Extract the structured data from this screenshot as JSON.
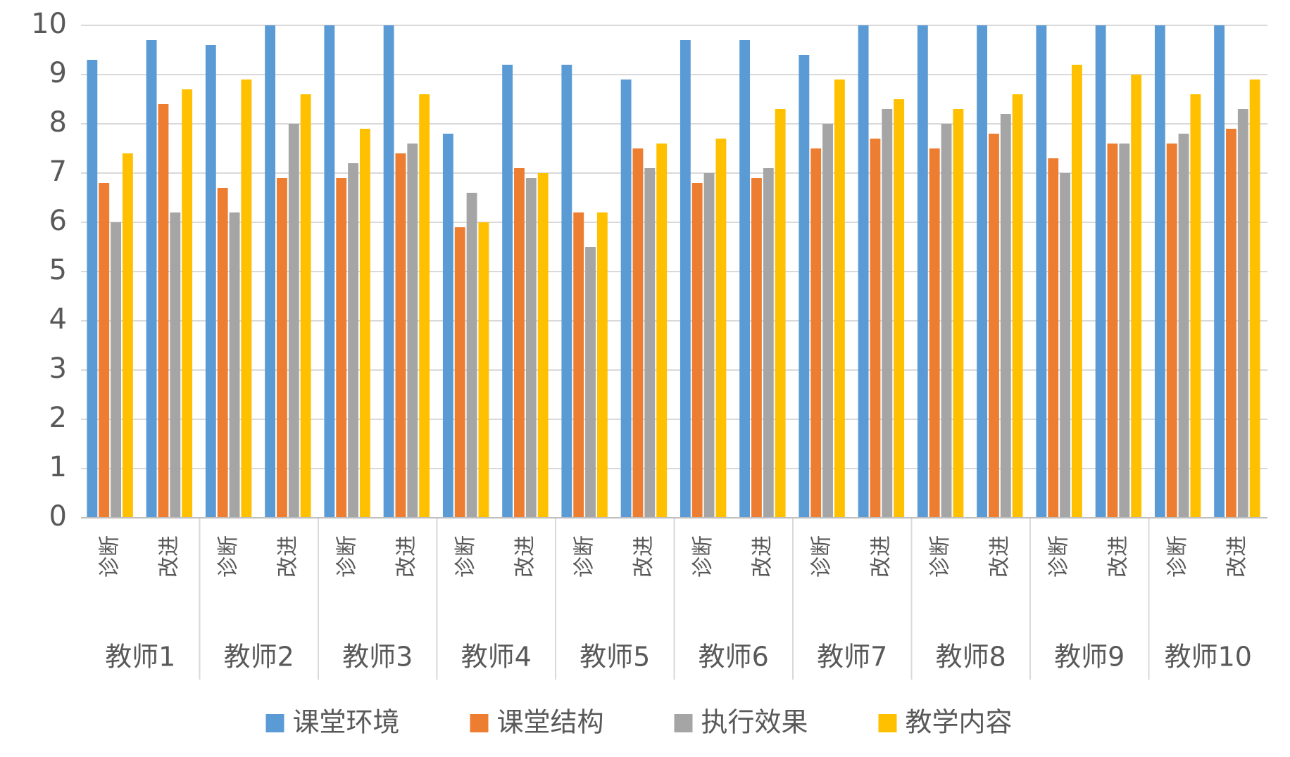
{
  "chart_data": {
    "type": "bar",
    "categories": [
      "诊断",
      "改进",
      "诊断",
      "改进",
      "诊断",
      "改进",
      "诊断",
      "改进",
      "诊断",
      "改进",
      "诊断",
      "改进",
      "诊断",
      "改进",
      "诊断",
      "改进",
      "诊断",
      "改进",
      "诊断",
      "改进"
    ],
    "groups": [
      "教师1",
      "教师2",
      "教师3",
      "教师4",
      "教师5",
      "教师6",
      "教师7",
      "教师8",
      "教师9",
      "教师10"
    ],
    "series": [
      {
        "name": "课堂环境",
        "color": "#5b9bd5",
        "values": [
          9.3,
          9.7,
          9.6,
          10,
          10,
          10,
          7.8,
          9.2,
          9.2,
          8.9,
          9.7,
          9.7,
          9.4,
          10,
          10,
          10,
          10,
          10,
          10,
          10
        ]
      },
      {
        "name": "课堂结构",
        "color": "#ed7d31",
        "values": [
          6.8,
          8.4,
          6.7,
          6.9,
          6.9,
          7.4,
          5.9,
          7.1,
          6.2,
          7.5,
          6.8,
          6.9,
          7.5,
          7.7,
          7.5,
          7.8,
          7.3,
          7.6,
          7.6,
          7.9
        ]
      },
      {
        "name": "执行效果",
        "color": "#a5a5a5",
        "values": [
          6.0,
          6.2,
          6.2,
          8.0,
          7.2,
          7.6,
          6.6,
          6.9,
          5.5,
          7.1,
          7.0,
          7.1,
          8.0,
          8.3,
          8.0,
          8.2,
          7.0,
          7.6,
          7.8,
          8.3
        ]
      },
      {
        "name": "教学内容",
        "color": "#ffc000",
        "values": [
          7.4,
          8.7,
          8.9,
          8.6,
          7.9,
          8.6,
          6.0,
          7.0,
          6.2,
          7.6,
          7.7,
          8.3,
          8.9,
          8.5,
          8.3,
          8.6,
          9.2,
          9.0,
          8.6,
          8.9
        ]
      }
    ],
    "ylim": [
      0,
      10
    ],
    "yticks": [
      0,
      1,
      2,
      3,
      4,
      5,
      6,
      7,
      8,
      9,
      10
    ],
    "grid": true
  }
}
